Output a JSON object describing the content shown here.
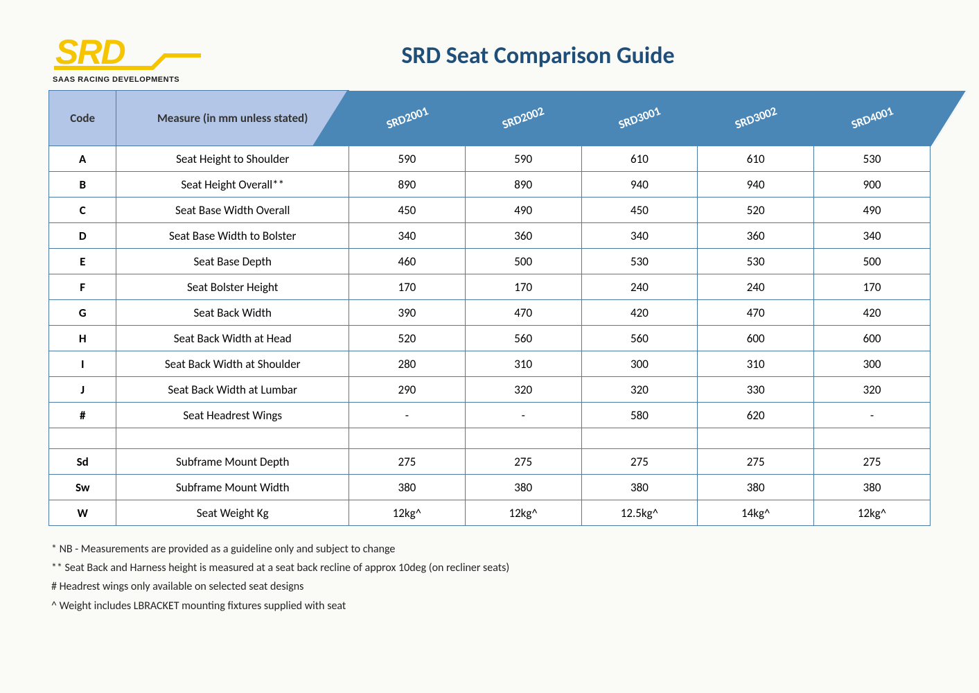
{
  "title": "SRD Seat Comparison Guide",
  "logo": {
    "brand_top": "SRD",
    "brand_sub": "SAAS RACING DEVELOPMENTS",
    "logo_color": "#f4c500",
    "sub_color": "#1a1a1a"
  },
  "colors": {
    "title_color": "#1f4e79",
    "header_bg": "#b4c6e7",
    "product_bg": "#4a86b6",
    "border_color": "#4a7ba6",
    "page_bg": "#fafaf7"
  },
  "table": {
    "code_header": "Code",
    "measure_header": "Measure (in mm unless stated)",
    "products": [
      "SRD2001",
      "SRD2002",
      "SRD3001",
      "SRD3002",
      "SRD4001"
    ],
    "rows": [
      {
        "code": "A",
        "measure": "Seat Height to Shoulder",
        "v": [
          "590",
          "590",
          "610",
          "610",
          "530"
        ]
      },
      {
        "code": "B",
        "measure": "Seat Height Overall**",
        "v": [
          "890",
          "890",
          "940",
          "940",
          "900"
        ]
      },
      {
        "code": "C",
        "measure": "Seat Base Width Overall",
        "v": [
          "450",
          "490",
          "450",
          "520",
          "490"
        ]
      },
      {
        "code": "D",
        "measure": "Seat Base Width to Bolster",
        "v": [
          "340",
          "360",
          "340",
          "360",
          "340"
        ]
      },
      {
        "code": "E",
        "measure": "Seat Base Depth",
        "v": [
          "460",
          "500",
          "530",
          "530",
          "500"
        ]
      },
      {
        "code": "F",
        "measure": "Seat Bolster Height",
        "v": [
          "170",
          "170",
          "240",
          "240",
          "170"
        ]
      },
      {
        "code": "G",
        "measure": "Seat Back Width",
        "v": [
          "390",
          "470",
          "420",
          "470",
          "420"
        ]
      },
      {
        "code": "H",
        "measure": "Seat Back Width at Head",
        "v": [
          "520",
          "560",
          "560",
          "600",
          "600"
        ]
      },
      {
        "code": "I",
        "measure": "Seat Back Width at Shoulder",
        "v": [
          "280",
          "310",
          "300",
          "310",
          "300"
        ]
      },
      {
        "code": "J",
        "measure": "Seat Back Width at Lumbar",
        "v": [
          "290",
          "320",
          "320",
          "330",
          "320"
        ]
      },
      {
        "code": "#",
        "measure": "Seat Headrest Wings",
        "v": [
          "-",
          "-",
          "580",
          "620",
          "-"
        ]
      }
    ],
    "rows2": [
      {
        "code": "Sd",
        "measure": "Subframe Mount Depth",
        "v": [
          "275",
          "275",
          "275",
          "275",
          "275"
        ]
      },
      {
        "code": "Sw",
        "measure": "Subframe Mount Width",
        "v": [
          "380",
          "380",
          "380",
          "380",
          "380"
        ]
      },
      {
        "code": "W",
        "measure": "Seat Weight Kg",
        "v": [
          "12kg^",
          "12kg^",
          "12.5kg^",
          "14kg^",
          "12kg^"
        ]
      }
    ]
  },
  "footnotes": [
    "* NB - Measurements are provided as a guideline only and subject to change",
    "** Seat Back and Harness height is measured at a seat back recline of approx 10deg (on recliner seats)",
    "# Headrest wings only available on selected seat designs",
    "^ Weight includes LBRACKET mounting fixtures supplied with seat"
  ]
}
